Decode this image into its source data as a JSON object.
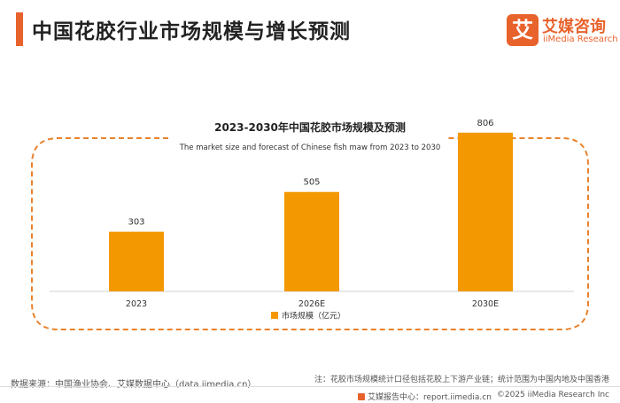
{
  "page": {
    "title": "中国花胶行业市场规模与增长预测"
  },
  "logo": {
    "mark": "艾",
    "cn": "艾媒咨询",
    "en": "iiMedia Research"
  },
  "chart_data": {
    "type": "bar",
    "title": "2023-2030年中国花胶市场规模及预测",
    "subtitle": "The market size and forecast of Chinese fish maw from 2023 to 2030",
    "categories": [
      "2023",
      "2026E",
      "2030E"
    ],
    "series": [
      {
        "name": "市场规模（亿元）",
        "values": [
          303,
          505,
          806
        ]
      }
    ],
    "ylim": [
      0,
      850
    ],
    "xlabel": "",
    "ylabel": "",
    "legend": "bottom-center",
    "grid": false,
    "colors": {
      "bar": "#F39800",
      "frame": "#E8822C"
    }
  },
  "footer": {
    "source": "数据来源：中国渔业协会、艾媒数据中心（data.iimedia.cn）",
    "note": "注：花胶市场规模统计口径包括花胶上下游产业链；统计范围为中国内地及中国香港",
    "center": "艾媒报告中心：report.iimedia.cn",
    "copyright": "©2025  iiMedia Research  Inc"
  },
  "colors": {
    "accent": "#E8622C"
  }
}
